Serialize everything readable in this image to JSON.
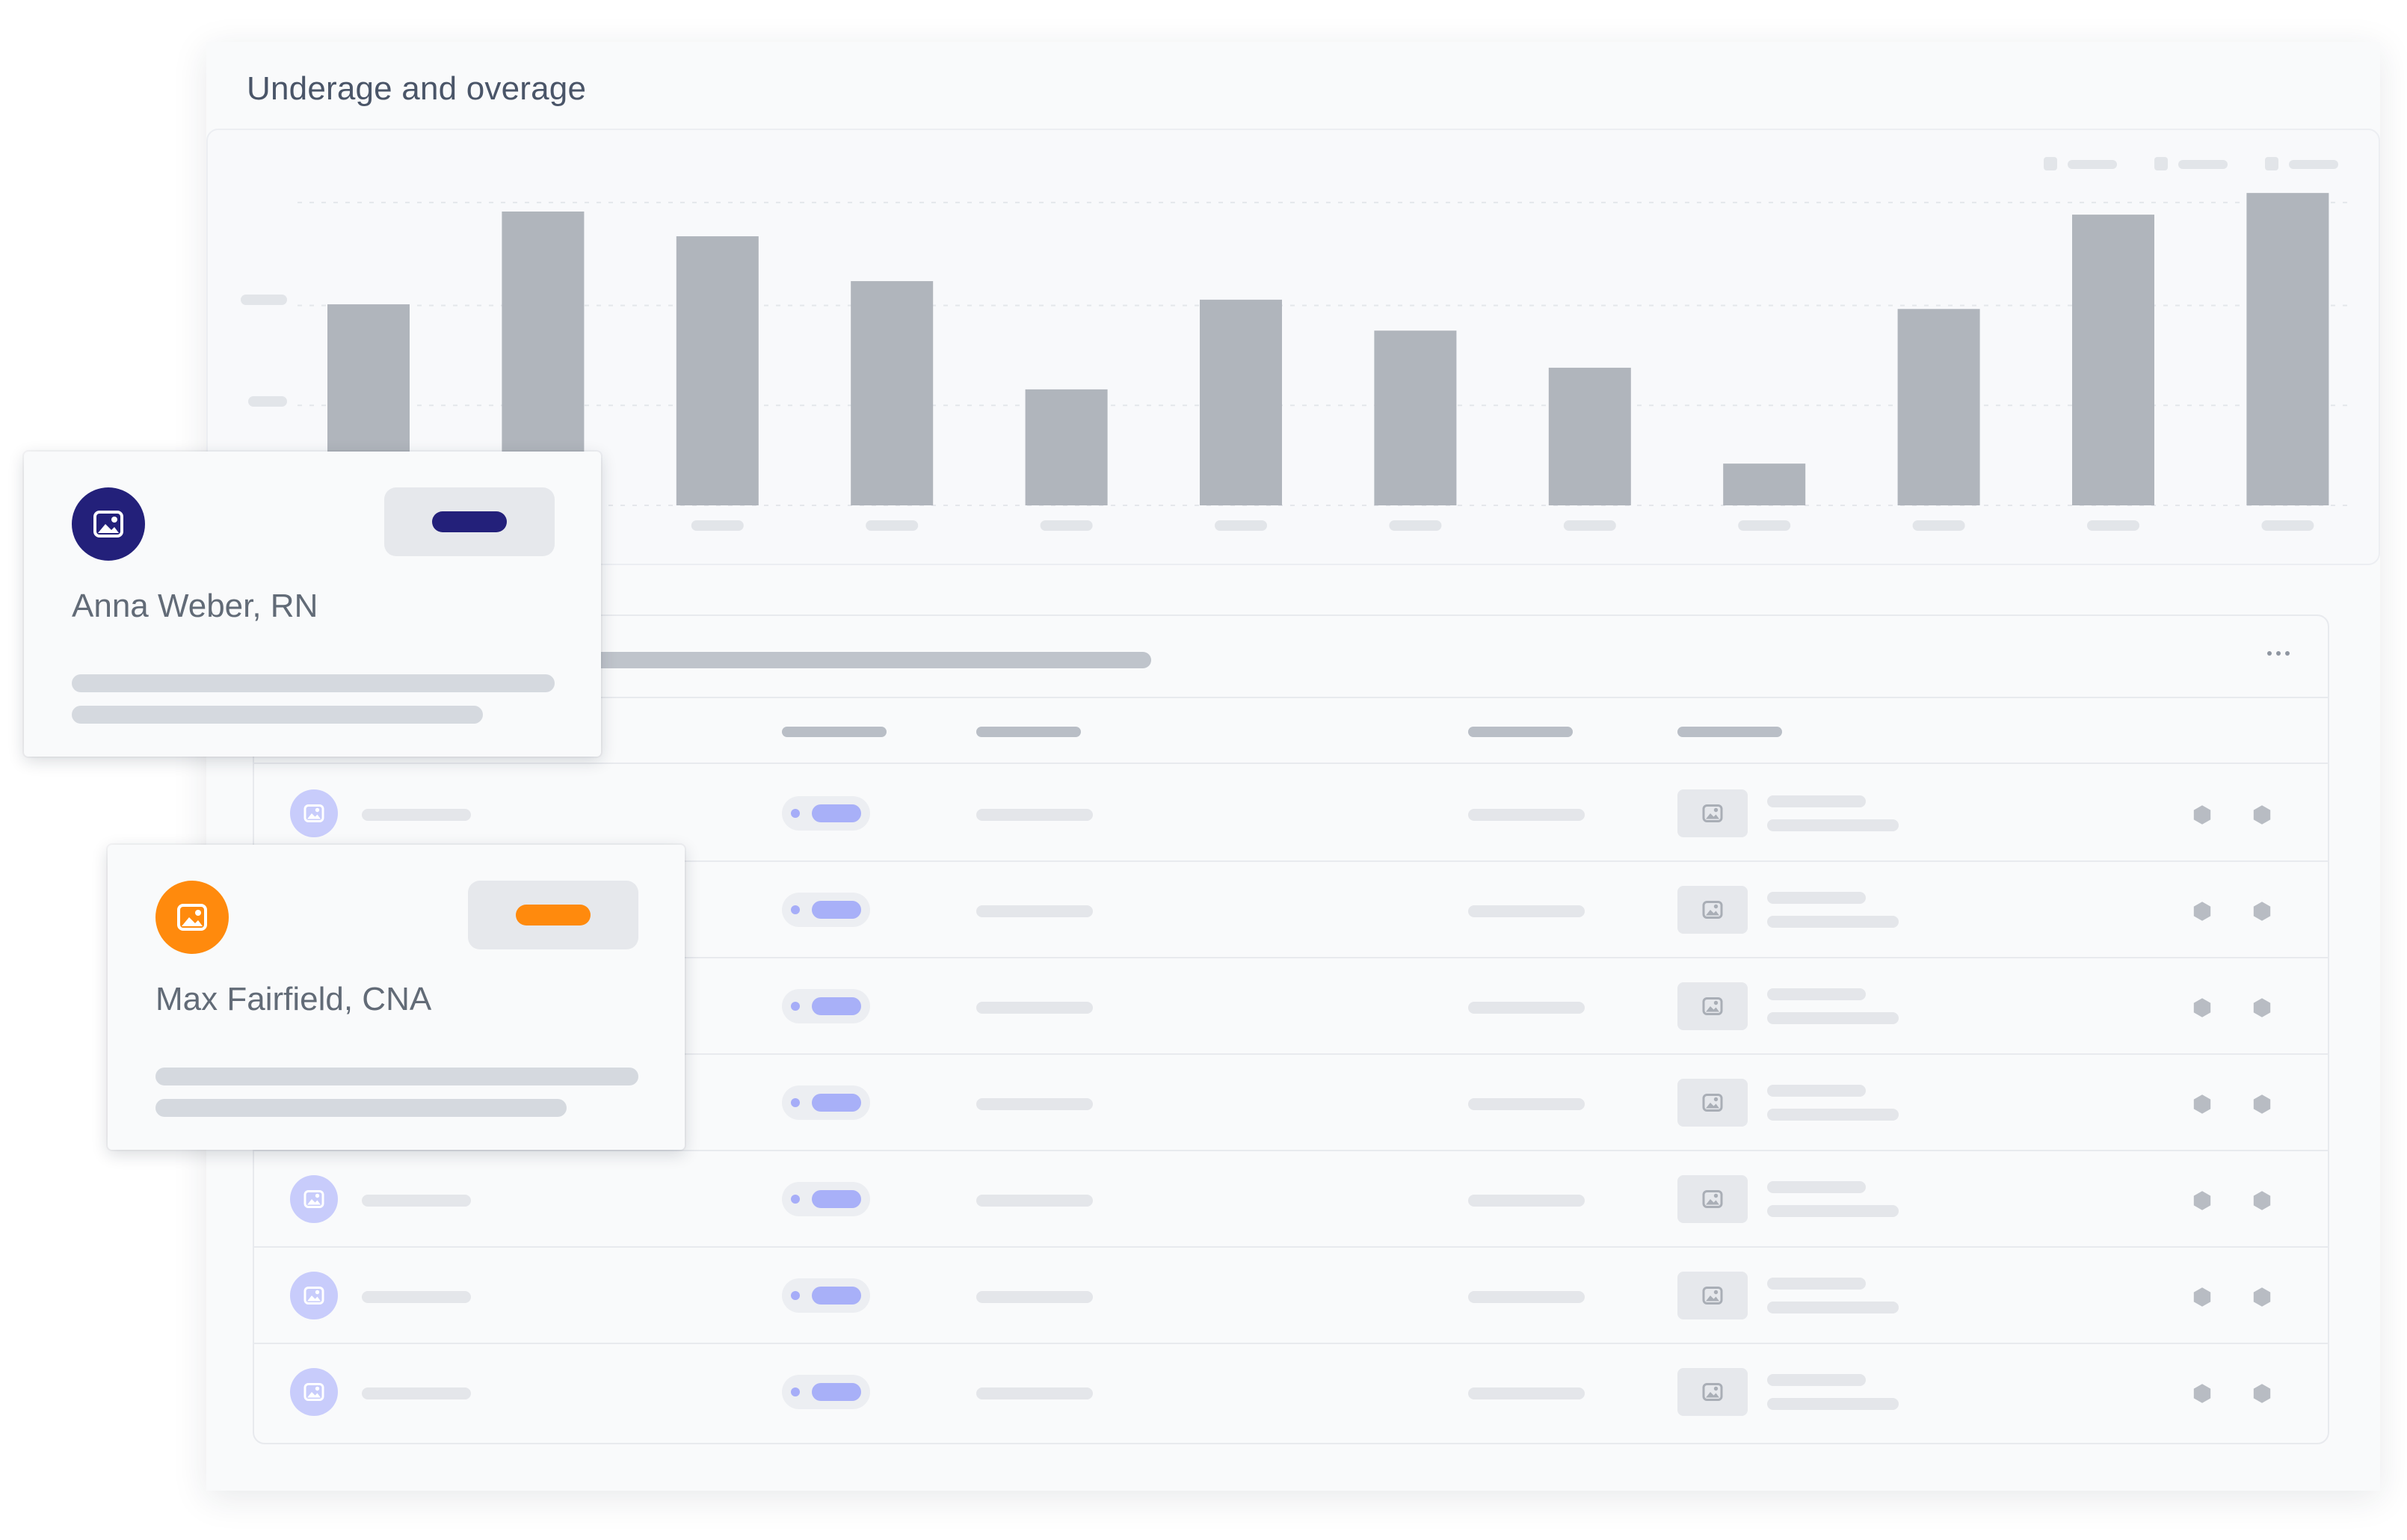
{
  "panel": {
    "title": "Underage and overage"
  },
  "chart_data": {
    "type": "bar",
    "categories": [
      "",
      "",
      "",
      "",
      "",
      "",
      "",
      "",
      "",
      "",
      "",
      ""
    ],
    "values": [
      130,
      190,
      174,
      145,
      75,
      133,
      113,
      89,
      27,
      127,
      188,
      202
    ],
    "title": "",
    "xlabel": "",
    "ylabel": "",
    "ylim": [
      0,
      204
    ],
    "grid": true,
    "legend": "top-right",
    "bar_color": "#b0b5bc"
  },
  "table": {
    "row_count": 7,
    "rows": [
      {},
      {},
      {},
      {},
      {},
      {},
      {}
    ]
  },
  "cards": [
    {
      "name": "Anna Weber, RN",
      "accent_color": "#23207a"
    },
    {
      "name": "Max Fairfield, CNA",
      "accent_color": "#ff8a0d"
    }
  ]
}
